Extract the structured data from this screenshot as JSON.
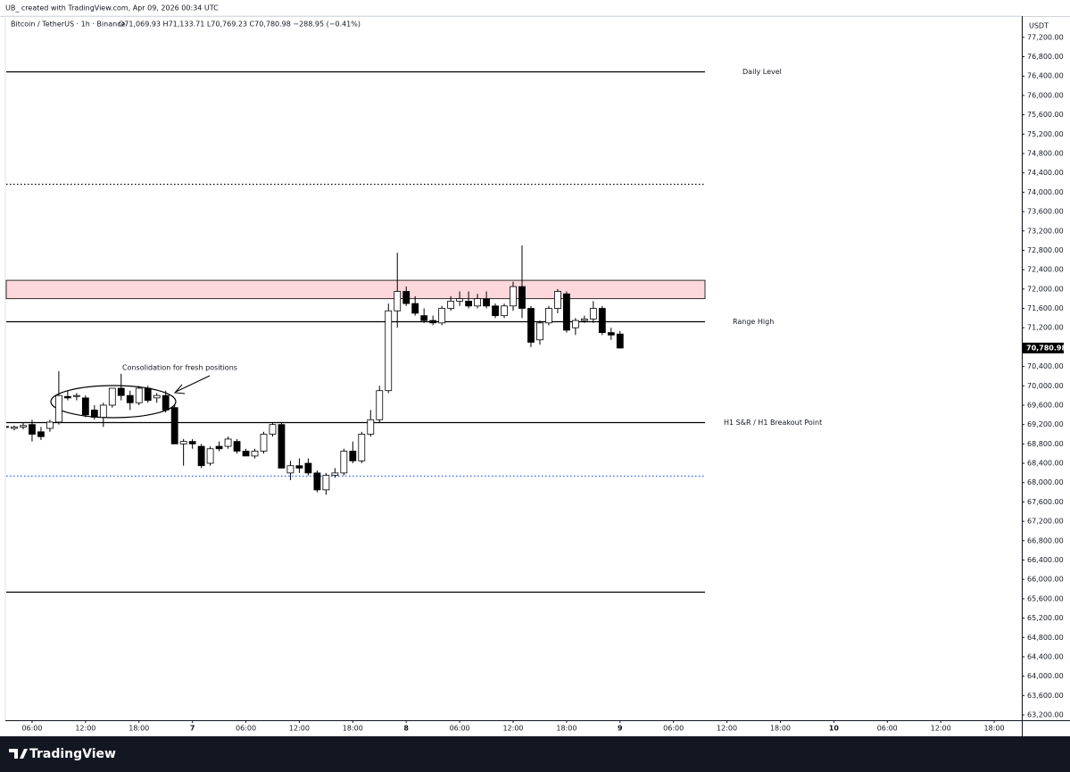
{
  "header": "UB_ created with TradingView.com, Apr 09, 2026 00:34 UTC",
  "footer": "TradingView",
  "chart_data": {
    "type": "candlestick",
    "title": "Bitcoin / TetherUS · 1h · Binance",
    "ohlc_label": "O71,069.93 H71,133.71 L70,769.23 C70,780.98 −288.95 (−0.41%)",
    "y_axis_label": "USDT",
    "x": [
      3,
      4,
      5,
      6,
      7,
      8,
      9,
      10,
      11,
      12,
      13,
      14,
      15,
      16,
      17,
      18,
      19,
      20,
      21,
      22,
      23,
      24,
      25,
      26,
      27,
      28,
      29,
      30,
      31,
      32,
      33,
      34,
      35,
      36,
      37,
      38,
      39,
      40,
      41,
      42,
      43,
      44,
      45,
      46,
      47,
      48,
      49,
      50,
      51,
      52,
      53,
      54,
      55,
      56,
      57,
      58,
      59,
      60,
      61,
      62,
      63,
      64,
      65,
      66,
      67,
      68,
      69,
      70,
      71,
      72
    ],
    "open": [
      69160,
      69120,
      69150,
      69200,
      69050,
      69120,
      69250,
      69780,
      69780,
      69750,
      69500,
      69350,
      69600,
      69950,
      69800,
      69650,
      69950,
      69750,
      69800,
      69550,
      68800,
      68850,
      68750,
      68400,
      68750,
      68750,
      68850,
      68650,
      68550,
      68650,
      69000,
      69200,
      68200,
      68350,
      68400,
      68200,
      67850,
      68150,
      68200,
      68650,
      68450,
      69000,
      69300,
      69900,
      71550,
      71950,
      71700,
      71450,
      71350,
      71300,
      71600,
      71750,
      71750,
      71650,
      71800,
      71650,
      71450,
      71650,
      72050,
      71600,
      70950,
      71300,
      71600,
      71900,
      71200,
      71350,
      71380,
      71600,
      71100,
      71069.93
    ],
    "high": [
      69200,
      69180,
      69230,
      69300,
      69150,
      69300,
      70300,
      69900,
      69850,
      69800,
      69600,
      69650,
      69950,
      70250,
      69900,
      70000,
      70000,
      69850,
      69900,
      69600,
      68900,
      68900,
      68800,
      68750,
      68850,
      68950,
      68900,
      68700,
      68700,
      69050,
      69250,
      69250,
      68450,
      68500,
      68500,
      68250,
      68200,
      68300,
      68700,
      68850,
      69050,
      69500,
      70000,
      71700,
      72750,
      72050,
      71850,
      71600,
      71450,
      71650,
      71850,
      71950,
      71950,
      71900,
      71950,
      71700,
      71700,
      72150,
      72900,
      71650,
      71350,
      71650,
      72000,
      71950,
      71400,
      71450,
      71750,
      71650,
      71200,
      71133.71
    ],
    "low": [
      69100,
      69080,
      69100,
      68850,
      68880,
      69050,
      69200,
      69700,
      69700,
      69350,
      69300,
      69150,
      69550,
      69700,
      69500,
      69600,
      69650,
      69650,
      69450,
      68800,
      68350,
      68700,
      68300,
      68350,
      68650,
      68700,
      68600,
      68550,
      68500,
      68600,
      68950,
      68300,
      68050,
      68200,
      68150,
      67800,
      67750,
      68100,
      68150,
      68400,
      68400,
      68950,
      69250,
      69850,
      71200,
      71650,
      71450,
      71300,
      71250,
      71250,
      71550,
      71650,
      71600,
      71600,
      71600,
      71400,
      71400,
      71550,
      71400,
      70800,
      70850,
      71250,
      71500,
      71100,
      71050,
      71300,
      71300,
      71050,
      70950,
      70769.23
    ],
    "close": [
      69140,
      69150,
      69180,
      69000,
      68950,
      69250,
      69800,
      69750,
      69800,
      69400,
      69350,
      69600,
      69950,
      69800,
      69650,
      69950,
      69700,
      69800,
      69500,
      68800,
      68850,
      68800,
      68350,
      68700,
      68700,
      68900,
      68650,
      68550,
      68650,
      69000,
      69200,
      68300,
      68350,
      68300,
      68200,
      67850,
      68150,
      68200,
      68650,
      68450,
      69000,
      69300,
      69900,
      71550,
      71950,
      71700,
      71500,
      71350,
      71300,
      71600,
      71750,
      71800,
      71650,
      71800,
      71650,
      71450,
      71650,
      72050,
      71600,
      70900,
      71300,
      71600,
      71950,
      71150,
      71350,
      71380,
      71600,
      71100,
      71050,
      70780.98
    ],
    "up_color": "#ffffff",
    "down_color": "#000000",
    "xlim": [
      3.1,
      117.1
    ],
    "xticks": [
      {
        "value": 6,
        "label": "06:00"
      },
      {
        "value": 12,
        "label": "12:00"
      },
      {
        "value": 18,
        "label": "18:00"
      },
      {
        "value": 24,
        "label": "7"
      },
      {
        "value": 30,
        "label": "06:00"
      },
      {
        "value": 36,
        "label": "12:00"
      },
      {
        "value": 42,
        "label": "18:00"
      },
      {
        "value": 48,
        "label": "8"
      },
      {
        "value": 54,
        "label": "06:00"
      },
      {
        "value": 60,
        "label": "12:00"
      },
      {
        "value": 66,
        "label": "18:00"
      },
      {
        "value": 72,
        "label": "9"
      },
      {
        "value": 78,
        "label": "06:00"
      },
      {
        "value": 84,
        "label": "12:00"
      },
      {
        "value": 90,
        "label": "18:00"
      },
      {
        "value": 96,
        "label": "10"
      },
      {
        "value": 102,
        "label": "06:00"
      },
      {
        "value": 108,
        "label": "12:00"
      },
      {
        "value": 114,
        "label": "18:00"
      }
    ],
    "ylim": [
      63090,
      77640
    ],
    "yticks": [
      {
        "value": 63200,
        "label": "63,200.00"
      },
      {
        "value": 63600,
        "label": "63,600.00"
      },
      {
        "value": 64000,
        "label": "64,000.00"
      },
      {
        "value": 64400,
        "label": "64,400.00"
      },
      {
        "value": 64800,
        "label": "64,800.00"
      },
      {
        "value": 65200,
        "label": "65,200.00"
      },
      {
        "value": 65600,
        "label": "65,600.00"
      },
      {
        "value": 66000,
        "label": "66,000.00"
      },
      {
        "value": 66400,
        "label": "66,400.00"
      },
      {
        "value": 66800,
        "label": "66,800.00"
      },
      {
        "value": 67200,
        "label": "67,200.00"
      },
      {
        "value": 67600,
        "label": "67,600.00"
      },
      {
        "value": 68000,
        "label": "68,000.00"
      },
      {
        "value": 68400,
        "label": "68,400.00"
      },
      {
        "value": 68800,
        "label": "68,800.00"
      },
      {
        "value": 69200,
        "label": "69,200.00"
      },
      {
        "value": 69600,
        "label": "69,600.00"
      },
      {
        "value": 70000,
        "label": "70,000.00"
      },
      {
        "value": 70400,
        "label": "70,400.00"
      },
      {
        "value": 70800,
        "label": "70,800.00"
      },
      {
        "value": 71200,
        "label": "71,200.00"
      },
      {
        "value": 71600,
        "label": "71,600.00"
      },
      {
        "value": 72000,
        "label": "72,000.00"
      },
      {
        "value": 72400,
        "label": "72,400.00"
      },
      {
        "value": 72800,
        "label": "72,800.00"
      },
      {
        "value": 73200,
        "label": "73,200.00"
      },
      {
        "value": 73600,
        "label": "73,600.00"
      },
      {
        "value": 74000,
        "label": "74,000.00"
      },
      {
        "value": 74400,
        "label": "74,400.00"
      },
      {
        "value": 74800,
        "label": "74,800.00"
      },
      {
        "value": 75200,
        "label": "75,200.00"
      },
      {
        "value": 75600,
        "label": "75,600.00"
      },
      {
        "value": 76000,
        "label": "76,000.00"
      },
      {
        "value": 76400,
        "label": "76,400.00"
      },
      {
        "value": 76800,
        "label": "76,800.00"
      },
      {
        "value": 77200,
        "label": "77,200.00"
      }
    ],
    "levels": [
      {
        "value": 76500,
        "style": "solid",
        "color": "#000000",
        "label": "Daily Level"
      },
      {
        "value": 74170,
        "style": "dotted",
        "color": "#000000"
      },
      {
        "value": 71330,
        "style": "solid",
        "color": "#000000",
        "label": "Range High"
      },
      {
        "value": 69250,
        "style": "solid",
        "color": "#000000",
        "label": "H1 S&R / H1 Breakout Point"
      },
      {
        "value": 68140,
        "style": "dotted",
        "color": "#2962ff"
      },
      {
        "value": 65740,
        "style": "solid",
        "color": "#000000"
      }
    ],
    "zone": {
      "from": 71800,
      "to": 72180,
      "color": "#fcd8dc"
    },
    "last_price": {
      "value": 70780.98,
      "label": "70,780.98"
    },
    "annotation": "Consolidation for fresh positions"
  }
}
